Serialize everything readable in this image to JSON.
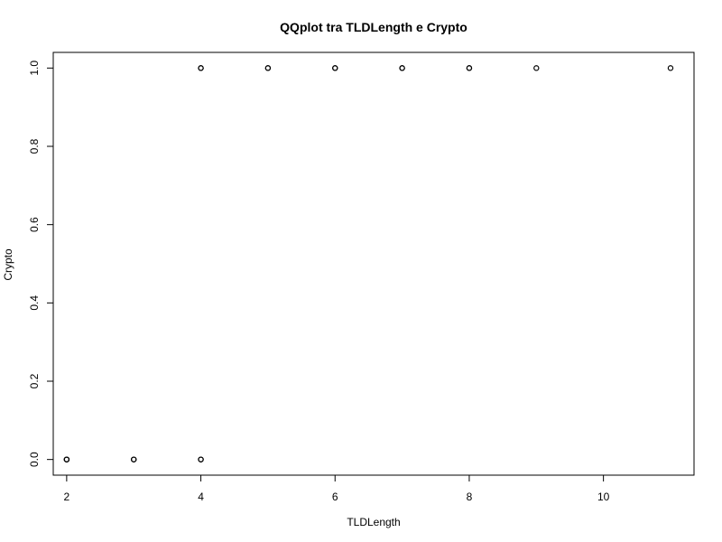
{
  "chart_data": {
    "type": "scatter",
    "title": "QQplot tra TLDLength e Crypto",
    "xlabel": "TLDLength",
    "ylabel": "Crypto",
    "xlim": [
      1.8,
      11.35
    ],
    "ylim": [
      -0.04,
      1.04
    ],
    "x_ticks": [
      2,
      4,
      6,
      8,
      10
    ],
    "x_tick_labels": [
      "2",
      "4",
      "6",
      "8",
      "10"
    ],
    "y_ticks": [
      0.0,
      0.2,
      0.4,
      0.6,
      0.8,
      1.0
    ],
    "y_tick_labels": [
      "0.0",
      "0.2",
      "0.4",
      "0.6",
      "0.8",
      "1.0"
    ],
    "grid": false,
    "marker": "open-circle",
    "points": [
      {
        "x": 2,
        "y": 0
      },
      {
        "x": 2,
        "y": 0
      },
      {
        "x": 2,
        "y": 0
      },
      {
        "x": 3,
        "y": 0
      },
      {
        "x": 3,
        "y": 0
      },
      {
        "x": 4,
        "y": 0
      },
      {
        "x": 4,
        "y": 0
      },
      {
        "x": 4,
        "y": 1
      },
      {
        "x": 4,
        "y": 1
      },
      {
        "x": 5,
        "y": 1
      },
      {
        "x": 5,
        "y": 1
      },
      {
        "x": 6,
        "y": 1
      },
      {
        "x": 6,
        "y": 1
      },
      {
        "x": 7,
        "y": 1
      },
      {
        "x": 7,
        "y": 1
      },
      {
        "x": 8,
        "y": 1
      },
      {
        "x": 8,
        "y": 1
      },
      {
        "x": 9,
        "y": 1
      },
      {
        "x": 11,
        "y": 1
      }
    ]
  }
}
